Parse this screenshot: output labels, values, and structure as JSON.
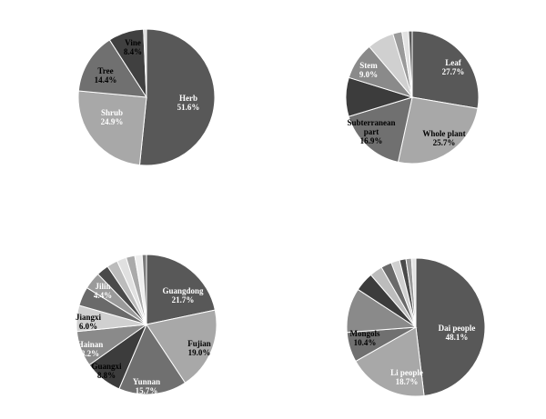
{
  "chart_data": [
    {
      "type": "pie",
      "slices": [
        {
          "label": "Herb",
          "value": 51.6,
          "display": "51.6%",
          "color": "#585858",
          "text_color": "#ffffff"
        },
        {
          "label": "Shrub",
          "value": 24.9,
          "display": "24.9%",
          "color": "#a8a8a8",
          "text_color": "#ffffff"
        },
        {
          "label": "Tree",
          "value": 14.4,
          "display": "14.4%",
          "color": "#707070",
          "text_color": "#000000"
        },
        {
          "label": "Vine",
          "value": 8.4,
          "display": "8.4%",
          "color": "#404040",
          "text_color": "#000000"
        },
        {
          "label": "",
          "value": 0.7,
          "display": "",
          "color": "#d8d8d8",
          "text_color": "#000000"
        }
      ]
    },
    {
      "type": "pie",
      "slices": [
        {
          "label": "Leaf",
          "value": 27.7,
          "display": "27.7%",
          "color": "#585858",
          "text_color": "#ffffff"
        },
        {
          "label": "Whole plant",
          "value": 25.7,
          "display": "25.7%",
          "color": "#a8a8a8",
          "text_color": "#000000"
        },
        {
          "label": "Subterranean part",
          "value": 16.9,
          "display": "16.9%",
          "color": "#707070",
          "text_color": "#000000"
        },
        {
          "label": "",
          "value": 9.5,
          "display": "",
          "color": "#3c3c3c",
          "text_color": "#000000"
        },
        {
          "label": "Stem",
          "value": 9.0,
          "display": "9.0%",
          "color": "#8a8a8a",
          "text_color": "#ffffff"
        },
        {
          "label": "",
          "value": 6.5,
          "display": "",
          "color": "#d0d0d0",
          "text_color": "#000000"
        },
        {
          "label": "",
          "value": 2.2,
          "display": "",
          "color": "#9a9a9a",
          "text_color": "#000000"
        },
        {
          "label": "",
          "value": 1.6,
          "display": "",
          "color": "#e2e2e2",
          "text_color": "#000000"
        },
        {
          "label": "",
          "value": 0.9,
          "display": "",
          "color": "#5c5c5c",
          "text_color": "#000000"
        }
      ]
    },
    {
      "type": "pie",
      "slices": [
        {
          "label": "Guangdong",
          "value": 21.7,
          "display": "21.7%",
          "color": "#585858",
          "text_color": "#ffffff"
        },
        {
          "label": "Fujian",
          "value": 19.0,
          "display": "19.0%",
          "color": "#a8a8a8",
          "text_color": "#000000"
        },
        {
          "label": "Yunnan",
          "value": 15.7,
          "display": "15.7%",
          "color": "#707070",
          "text_color": "#ffffff"
        },
        {
          "label": "Guangxi",
          "value": 8.8,
          "display": "8.8%",
          "color": "#3c3c3c",
          "text_color": "#000000"
        },
        {
          "label": "Hainan",
          "value": 8.2,
          "display": "8.2%",
          "color": "#8a8a8a",
          "text_color": "#ffffff"
        },
        {
          "label": "Jiangxi",
          "value": 6.0,
          "display": "6.0%",
          "color": "#d0d0d0",
          "text_color": "#000000"
        },
        {
          "label": "Jilin",
          "value": 4.4,
          "display": "4.4%",
          "color": "#6a6a6a",
          "text_color": "#ffffff"
        },
        {
          "label": "",
          "value": 4.0,
          "display": "",
          "color": "#9a9a9a",
          "text_color": "#000000"
        },
        {
          "label": "",
          "value": 2.8,
          "display": "",
          "color": "#4a4a4a",
          "text_color": "#000000"
        },
        {
          "label": "",
          "value": 2.5,
          "display": "",
          "color": "#bcbcbc",
          "text_color": "#000000"
        },
        {
          "label": "",
          "value": 2.2,
          "display": "",
          "color": "#e0e0e0",
          "text_color": "#000000"
        },
        {
          "label": "",
          "value": 2.0,
          "display": "",
          "color": "#aaaaaa",
          "text_color": "#000000"
        },
        {
          "label": "",
          "value": 1.7,
          "display": "",
          "color": "#eeeeee",
          "text_color": "#000000"
        },
        {
          "label": "",
          "value": 1.0,
          "display": "",
          "color": "#7a7a7a",
          "text_color": "#000000"
        }
      ]
    },
    {
      "type": "pie",
      "slices": [
        {
          "label": "Dai people",
          "value": 48.1,
          "display": "48.1%",
          "color": "#585858",
          "text_color": "#ffffff"
        },
        {
          "label": "Li people",
          "value": 18.7,
          "display": "18.7%",
          "color": "#a8a8a8",
          "text_color": "#ffffff"
        },
        {
          "label": "",
          "value": 7.0,
          "display": "",
          "color": "#707070",
          "text_color": "#000000"
        },
        {
          "label": "Mongols",
          "value": 10.4,
          "display": "10.4%",
          "color": "#8a8a8a",
          "text_color": "#000000"
        },
        {
          "label": "",
          "value": 4.5,
          "display": "",
          "color": "#3c3c3c",
          "text_color": "#000000"
        },
        {
          "label": "",
          "value": 3.0,
          "display": "",
          "color": "#bcbcbc",
          "text_color": "#000000"
        },
        {
          "label": "",
          "value": 2.5,
          "display": "",
          "color": "#6a6a6a",
          "text_color": "#000000"
        },
        {
          "label": "",
          "value": 2.0,
          "display": "",
          "color": "#d0d0d0",
          "text_color": "#000000"
        },
        {
          "label": "",
          "value": 1.5,
          "display": "",
          "color": "#4a4a4a",
          "text_color": "#000000"
        },
        {
          "label": "",
          "value": 1.3,
          "display": "",
          "color": "#9a9a9a",
          "text_color": "#000000"
        },
        {
          "label": "",
          "value": 1.0,
          "display": "",
          "color": "#e2e2e2",
          "text_color": "#000000"
        }
      ]
    }
  ]
}
